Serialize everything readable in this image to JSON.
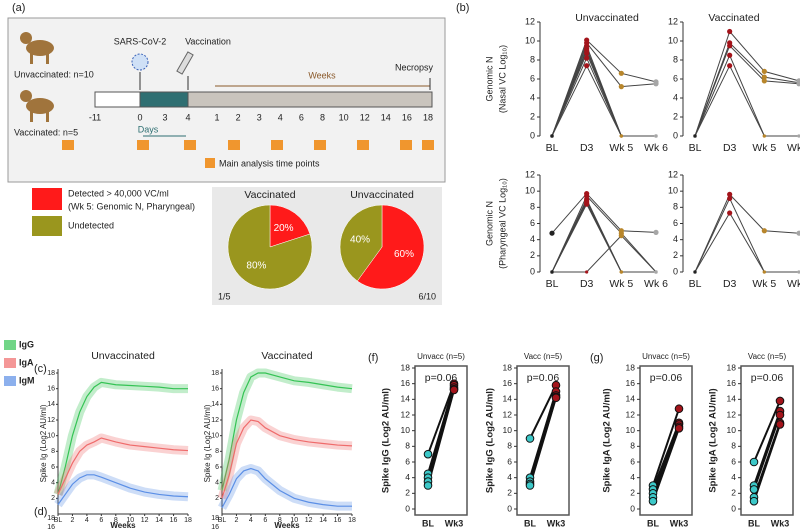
{
  "panel_a": {
    "label": "(a)",
    "unvaccinated": "Unvaccinated: n=10",
    "vaccinated": "Vaccinated: n=5",
    "virus": "SARS-CoV-2",
    "vaccination": "Vaccination",
    "weeks": "Weeks",
    "necropsy": "Necropsy",
    "days": "Days",
    "day_ticks": [
      "-11",
      "0",
      "3",
      "4"
    ],
    "week_ticks": [
      "1",
      "2",
      "3",
      "4",
      "6",
      "8",
      "10",
      "12",
      "14",
      "16",
      "18"
    ],
    "time_points": "Main analysis time points"
  },
  "legend": {
    "detected": "Detected > 40,000 VC/ml",
    "detected_note": "(Wk 5: Genomic N, Pharyngeal)",
    "undetected": "Undetected",
    "colors": [
      "#ff1a1a",
      "#9a961e"
    ]
  },
  "pies": [
    {
      "title": "Vaccinated",
      "values": [
        20,
        80
      ],
      "value_labels": [
        "20%",
        "80%"
      ],
      "ratio": "1/5"
    },
    {
      "title": "Unvaccinated",
      "values": [
        60,
        40
      ],
      "value_labels": [
        "60%",
        "40%"
      ],
      "ratio": "6/10"
    }
  ],
  "panel_b": {
    "label": "(b)",
    "titles": [
      "Unvaccinated",
      "Vaccinated"
    ],
    "categories": [
      "BL",
      "D3",
      "Wk 5",
      "Wk 6"
    ],
    "ylim": [
      0,
      12
    ],
    "yticks": [
      0,
      2,
      4,
      6,
      8,
      10,
      12
    ],
    "point_colors": [
      "#222222",
      "#a3141b",
      "#b8862b",
      "#a6a6a6"
    ],
    "rows": [
      {
        "ylabel": [
          "Genomic N",
          "(Nasal VC Log₁₀)"
        ],
        "plots": [
          {
            "series": [
              [
                0,
                10.1,
                6.6,
                5.7
              ],
              [
                0,
                9.8,
                5.2,
                5.5
              ],
              [
                0,
                9.5,
                0,
                0
              ],
              [
                0,
                9.2,
                0,
                0
              ],
              [
                0,
                9.0,
                0,
                0
              ],
              [
                0,
                8.7,
                0,
                0
              ],
              [
                0,
                8.2,
                0,
                0
              ],
              [
                0,
                7.4,
                0,
                0
              ]
            ]
          },
          {
            "series": [
              [
                0,
                11,
                6.8,
                5.8
              ],
              [
                0,
                9.8,
                6.2,
                5.6
              ],
              [
                0,
                9.5,
                5.8,
                5.5
              ],
              [
                0,
                8.5,
                0,
                0
              ],
              [
                0,
                7.4,
                0,
                0
              ]
            ]
          }
        ]
      },
      {
        "ylabel": [
          "Genomic N",
          "(Pharyngeal VC Log₁₀)"
        ],
        "plots": [
          {
            "series": [
              [
                4.8,
                9.7,
                5.1,
                4.9
              ],
              [
                0,
                9.4,
                4.8,
                0
              ],
              [
                0,
                9.0,
                0,
                0
              ],
              [
                0,
                8.8,
                0,
                0
              ],
              [
                0,
                8.6,
                0,
                0
              ],
              [
                0,
                8.4,
                0,
                0
              ],
              [
                0,
                0,
                4.5,
                0
              ]
            ]
          },
          {
            "series": [
              [
                0,
                9.6,
                5.1,
                4.8
              ],
              [
                0,
                9.1,
                0,
                0
              ],
              [
                0,
                7.3,
                0,
                0
              ]
            ]
          }
        ]
      }
    ]
  },
  "panel_c": {
    "label": "(c)",
    "titles": [
      "Unvaccinated",
      "Vaccinated"
    ],
    "ylabel": "Spike Ig (Log2 AU/ml)",
    "xlabel": "Weeks",
    "x": [
      0,
      1,
      2,
      3,
      4,
      5,
      6,
      8,
      10,
      12,
      14,
      16,
      18
    ],
    "xlim": [
      0,
      18
    ],
    "xticks": [
      {
        "value": 0,
        "label": "BL"
      },
      2,
      4,
      6,
      8,
      10,
      12,
      14,
      16,
      18
    ],
    "ylim": [
      0,
      18
    ],
    "yticks": [
      2,
      4,
      6,
      8,
      10,
      12,
      14,
      16,
      18
    ],
    "series": [
      {
        "name": "IgG",
        "color": "#34c354"
      },
      {
        "name": "IgA",
        "color": "#ef6b6b"
      },
      {
        "name": "IgM",
        "color": "#5b8fe6"
      }
    ],
    "plots": [
      {
        "values": [
          [
            2.5,
            6,
            10,
            13,
            15,
            16.2,
            16.8,
            16.5,
            16.4,
            16.3,
            16.2,
            16.0,
            16.0
          ],
          [
            2.5,
            4.5,
            6.5,
            8,
            8.8,
            9.2,
            9.7,
            9.2,
            8.8,
            8.6,
            8.4,
            8.2,
            8.1
          ],
          [
            1.2,
            2.5,
            3.8,
            4.6,
            5,
            5,
            4.7,
            4,
            3.3,
            2.8,
            2.5,
            2.3,
            2.2
          ]
        ]
      },
      {
        "values": [
          [
            3,
            7,
            12,
            15.5,
            17.5,
            18,
            18,
            17.5,
            17,
            16.8,
            16.5,
            16.2,
            16
          ],
          [
            2,
            5,
            9,
            11,
            12,
            11.8,
            11,
            10,
            9.5,
            9.2,
            9,
            8.8,
            8.7
          ],
          [
            0.8,
            2.5,
            4.5,
            5.5,
            5.8,
            5.5,
            4.5,
            3,
            2,
            1.5,
            1.2,
            1.0,
            1.0
          ]
        ]
      }
    ]
  },
  "panel_d": {
    "label": "(d)",
    "yticks": [
      16,
      18
    ]
  },
  "panel_f": {
    "label": "(f)",
    "ylabel": "Spike IgG (Log2 AU/ml)",
    "categories": [
      "BL",
      "Wk3"
    ],
    "ylim": [
      0,
      18
    ],
    "yticks": [
      0,
      2,
      4,
      6,
      8,
      10,
      12,
      14,
      16,
      18
    ],
    "point_colors": [
      "#3cc8c8",
      "#a3141b"
    ],
    "plots": [
      {
        "title": "Unvacc (n=5)",
        "p": "p=0.06",
        "series": [
          [
            7,
            16
          ],
          [
            4.5,
            15.8
          ],
          [
            4,
            15.5
          ],
          [
            3.5,
            15.3
          ],
          [
            3,
            15.2
          ]
        ]
      },
      {
        "title": "Vacc (n=5)",
        "p": "p=0.06",
        "series": [
          [
            9,
            15.8
          ],
          [
            4,
            15
          ],
          [
            3.5,
            14.5
          ],
          [
            3.2,
            14.3
          ],
          [
            3,
            14.2
          ]
        ]
      }
    ]
  },
  "panel_g": {
    "label": "(g)",
    "ylabel": "Spike IgA (Log2 AU/ml)",
    "categories": [
      "BL",
      "Wk3"
    ],
    "ylim": [
      0,
      18
    ],
    "yticks": [
      0,
      2,
      4,
      6,
      8,
      10,
      12,
      14,
      16,
      18
    ],
    "point_colors": [
      "#3cc8c8",
      "#a3141b"
    ],
    "plots": [
      {
        "title": "Unvacc (n=5)",
        "p": "p=0.06",
        "series": [
          [
            3,
            12.8
          ],
          [
            2.5,
            11
          ],
          [
            2,
            10.8
          ],
          [
            1.5,
            10.5
          ],
          [
            1,
            10.3
          ]
        ]
      },
      {
        "title": "Vacc (n=5)",
        "p": "p=0.06",
        "series": [
          [
            6,
            13.8
          ],
          [
            3,
            12.5
          ],
          [
            2.5,
            12
          ],
          [
            1.5,
            11
          ],
          [
            1,
            10.8
          ]
        ]
      }
    ]
  }
}
